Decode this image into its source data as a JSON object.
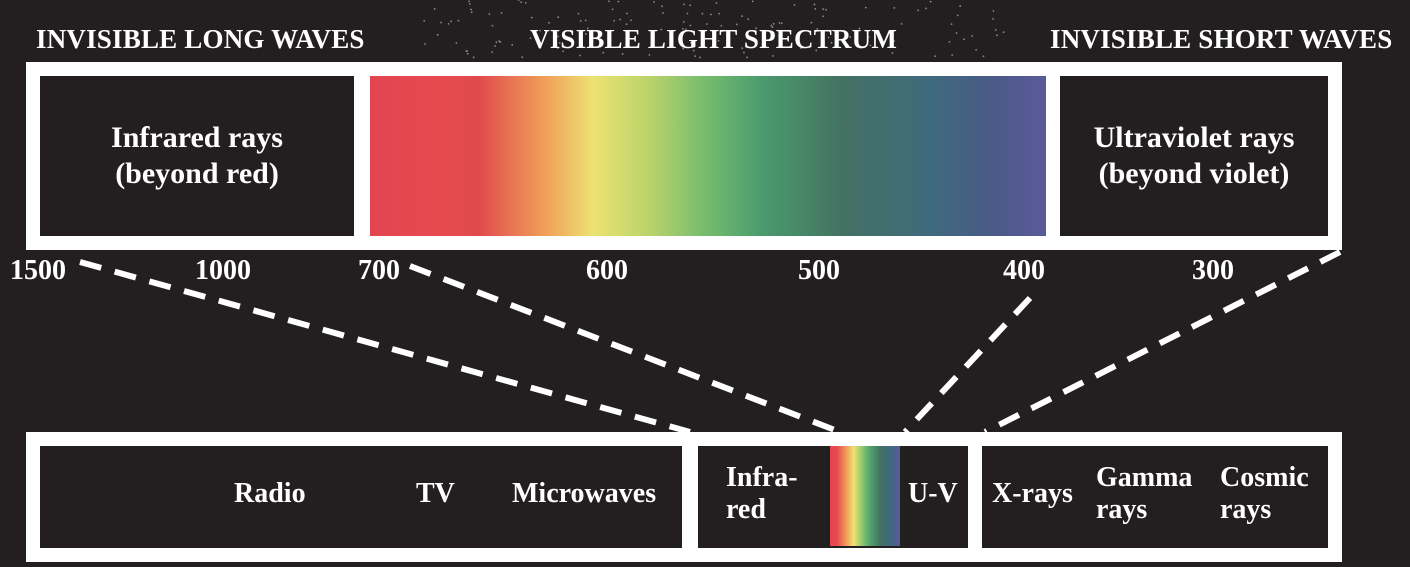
{
  "headings": {
    "long_waves": "INVISIBLE LONG WAVES",
    "visible": "VISIBLE LIGHT SPECTRUM",
    "short_waves": "INVISIBLE SHORT WAVES"
  },
  "top_boxes": {
    "infrared_line1": "Infrared rays",
    "infrared_line2": "(beyond red)",
    "ultraviolet_line1": "Ultraviolet rays",
    "ultraviolet_line2": "(beyond violet)"
  },
  "ticks": [
    "1500",
    "1000",
    "700",
    "600",
    "500",
    "400",
    "300"
  ],
  "bottom_bar": {
    "radio": "Radio",
    "tv": "TV",
    "microwaves": "Microwaves",
    "infrared_line1": "Infra-",
    "infrared_line2": "red",
    "uv": "U-V",
    "xrays": "X-rays",
    "gamma_line1": "Gamma",
    "gamma_line2": "rays",
    "cosmic_line1": "Cosmic",
    "cosmic_line2": "rays"
  },
  "colors": {
    "background": "#231f20",
    "frame": "#ffffff"
  }
}
